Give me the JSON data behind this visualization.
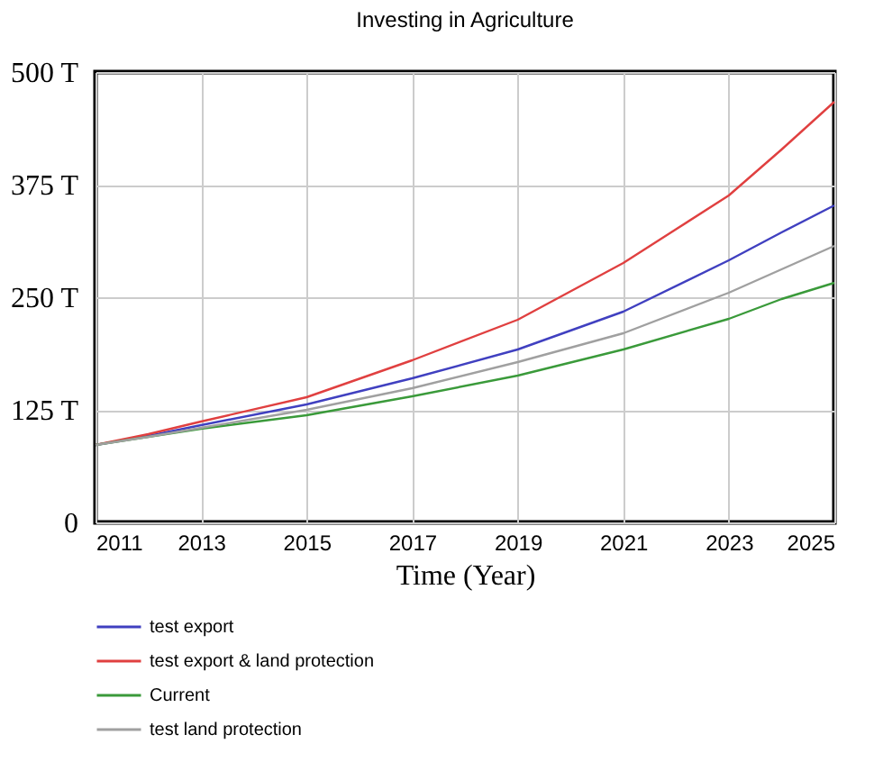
{
  "chart_data": {
    "type": "line",
    "title": "Investing in Agriculture",
    "xlabel": "Time (Year)",
    "x": [
      2011,
      2012,
      2013,
      2015,
      2017,
      2019,
      2021,
      2023,
      2024,
      2025
    ],
    "series": [
      {
        "name": "test export",
        "color": "#4040c0",
        "values": [
          86,
          96,
          108,
          131,
          160,
          192,
          234,
          291,
          322,
          352
        ]
      },
      {
        "name": "test export  & land protection",
        "color": "#e04040",
        "values": [
          86,
          98,
          112,
          139,
          180,
          225,
          288,
          363,
          414,
          467
        ]
      },
      {
        "name": "Current",
        "color": "#3a9a3a",
        "values": [
          86,
          95,
          104,
          119,
          140,
          163,
          192,
          226,
          248,
          266
        ]
      },
      {
        "name": "test land protection",
        "color": "#a0a0a0",
        "values": [
          86,
          95,
          105,
          125,
          149,
          178,
          210,
          255,
          281,
          307
        ]
      }
    ],
    "xlim": [
      2011,
      2025
    ],
    "xticks": [
      2011,
      2013,
      2015,
      2017,
      2019,
      2021,
      2023,
      2025
    ],
    "ylim": [
      0,
      500
    ],
    "yticks": [
      0,
      {
        "value": 125,
        "label": "125 T"
      },
      {
        "value": 250,
        "label": "250 T"
      },
      {
        "value": 375,
        "label": "375 T"
      },
      {
        "value": 500,
        "label": "500 T"
      }
    ],
    "grid": true,
    "legend": "bottom",
    "marker": "none",
    "line_style": "solid"
  }
}
